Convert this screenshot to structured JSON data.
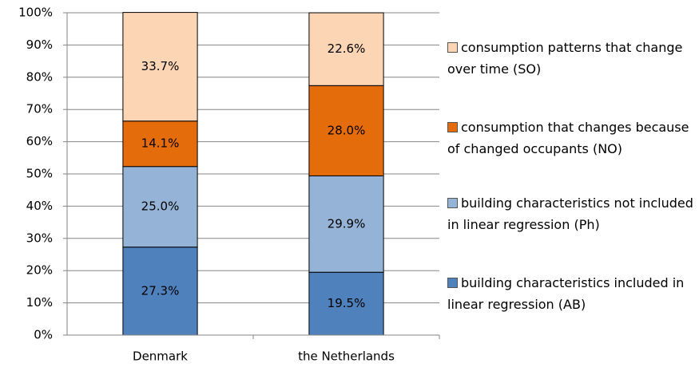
{
  "chart_data": {
    "type": "stacked_bar",
    "categories": [
      "Denmark",
      "the Netherlands"
    ],
    "series": [
      {
        "name": "building characteristics included in linear regression (AB)",
        "color": "#4f81bd",
        "values": [
          27.3,
          19.5
        ],
        "value_labels": [
          "27.3%",
          "19.5%"
        ]
      },
      {
        "name": "building characteristics not included in linear regression (Ph)",
        "color": "#95b3d7",
        "values": [
          25.0,
          29.9
        ],
        "value_labels": [
          "25.0%",
          "29.9%"
        ]
      },
      {
        "name": "consumption that changes because of changed occupants (NO)",
        "color": "#e46c0a",
        "values": [
          14.1,
          28.0
        ],
        "value_labels": [
          "14.1%",
          "28.0%"
        ]
      },
      {
        "name": "consumption patterns that change over time (SO)",
        "color": "#fcd5b5",
        "values": [
          33.7,
          22.6
        ],
        "value_labels": [
          "33.7%",
          "22.6%"
        ]
      }
    ],
    "ylim": [
      0,
      100
    ],
    "yticks": [
      {
        "value": 0,
        "label": "0%"
      },
      {
        "value": 10,
        "label": "10%"
      },
      {
        "value": 20,
        "label": "20%"
      },
      {
        "value": 30,
        "label": "30%"
      },
      {
        "value": 40,
        "label": "40%"
      },
      {
        "value": 50,
        "label": "50%"
      },
      {
        "value": 60,
        "label": "60%"
      },
      {
        "value": 70,
        "label": "70%"
      },
      {
        "value": 80,
        "label": "80%"
      },
      {
        "value": 90,
        "label": "90%"
      },
      {
        "value": 100,
        "label": "100%"
      }
    ],
    "grid": true,
    "legend": "right"
  }
}
